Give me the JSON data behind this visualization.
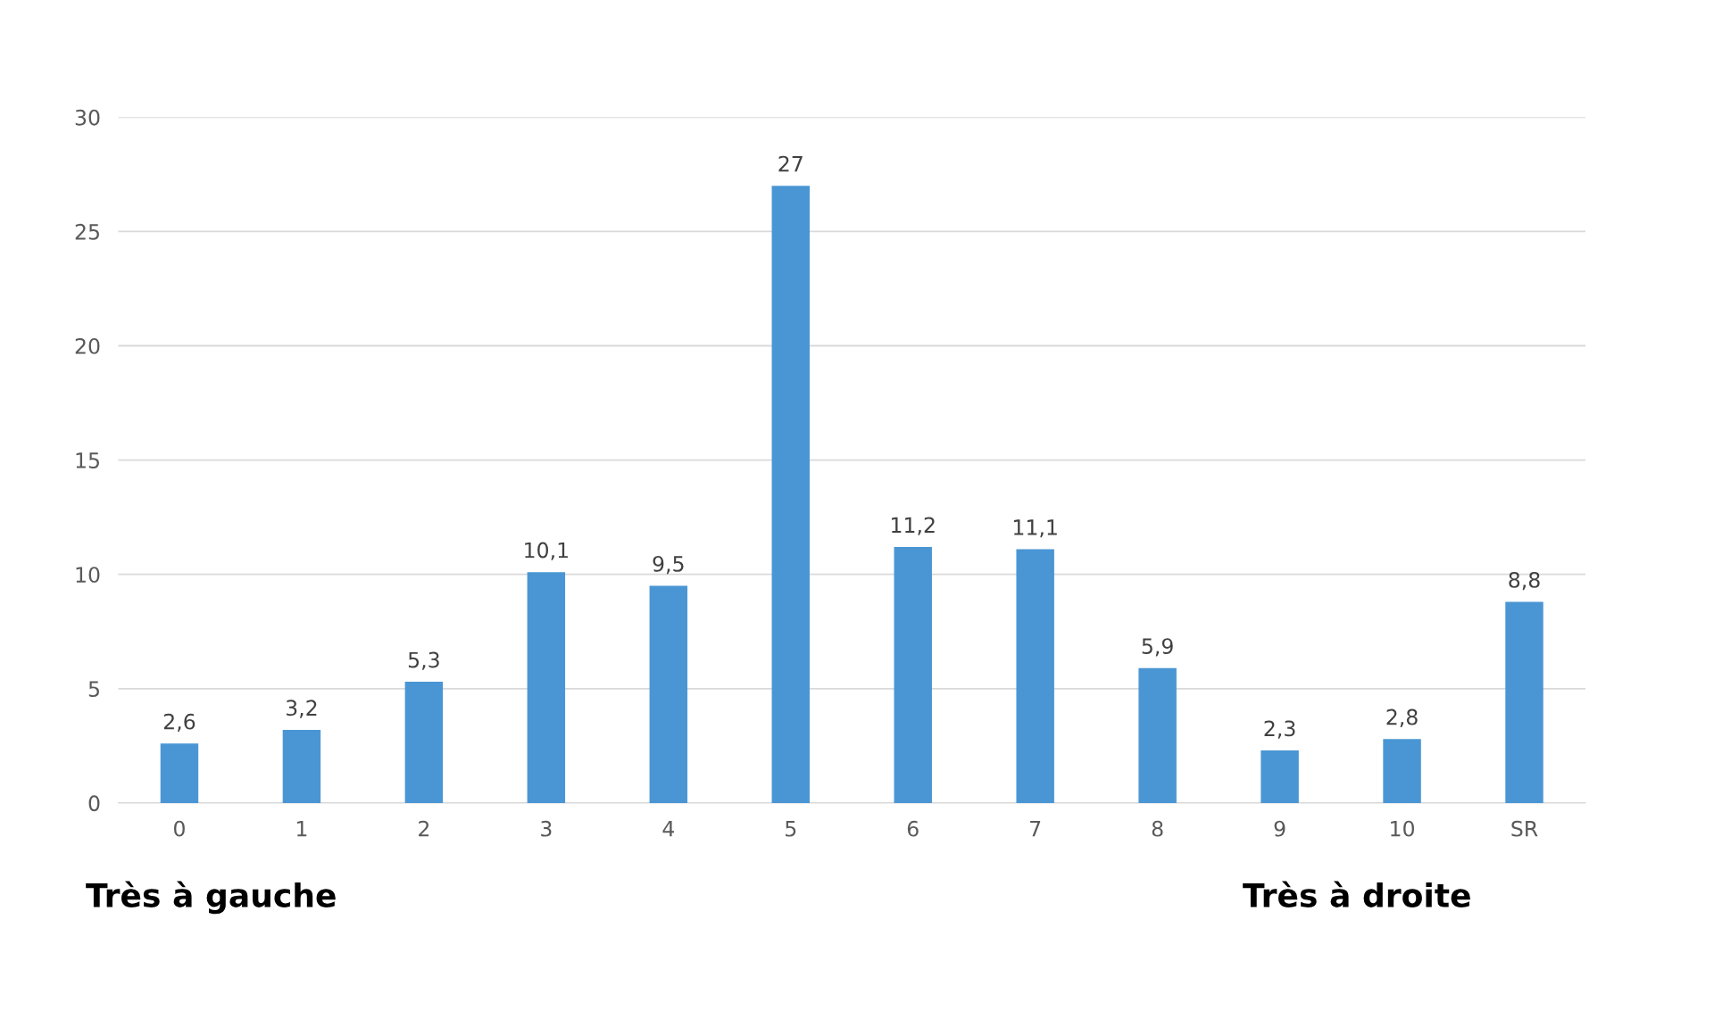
{
  "chart_data": {
    "type": "bar",
    "categories": [
      "0",
      "1",
      "2",
      "3",
      "4",
      "5",
      "6",
      "7",
      "8",
      "9",
      "10",
      "SR"
    ],
    "values": [
      2.6,
      3.2,
      5.3,
      10.1,
      9.5,
      27,
      11.2,
      11.1,
      5.9,
      2.3,
      2.8,
      8.8
    ],
    "value_labels": [
      "2,6",
      "3,2",
      "5,3",
      "10,1",
      "9,5",
      "27",
      "11,2",
      "11,1",
      "5,9",
      "2,3",
      "2,8",
      "8,8"
    ],
    "color": "#4a96d4",
    "ylim": [
      0,
      30
    ],
    "yticks": [
      0,
      5,
      10,
      15,
      20,
      25,
      30
    ],
    "grid": "y",
    "annotations": [
      "Très à gauche",
      "Très à droite"
    ]
  }
}
